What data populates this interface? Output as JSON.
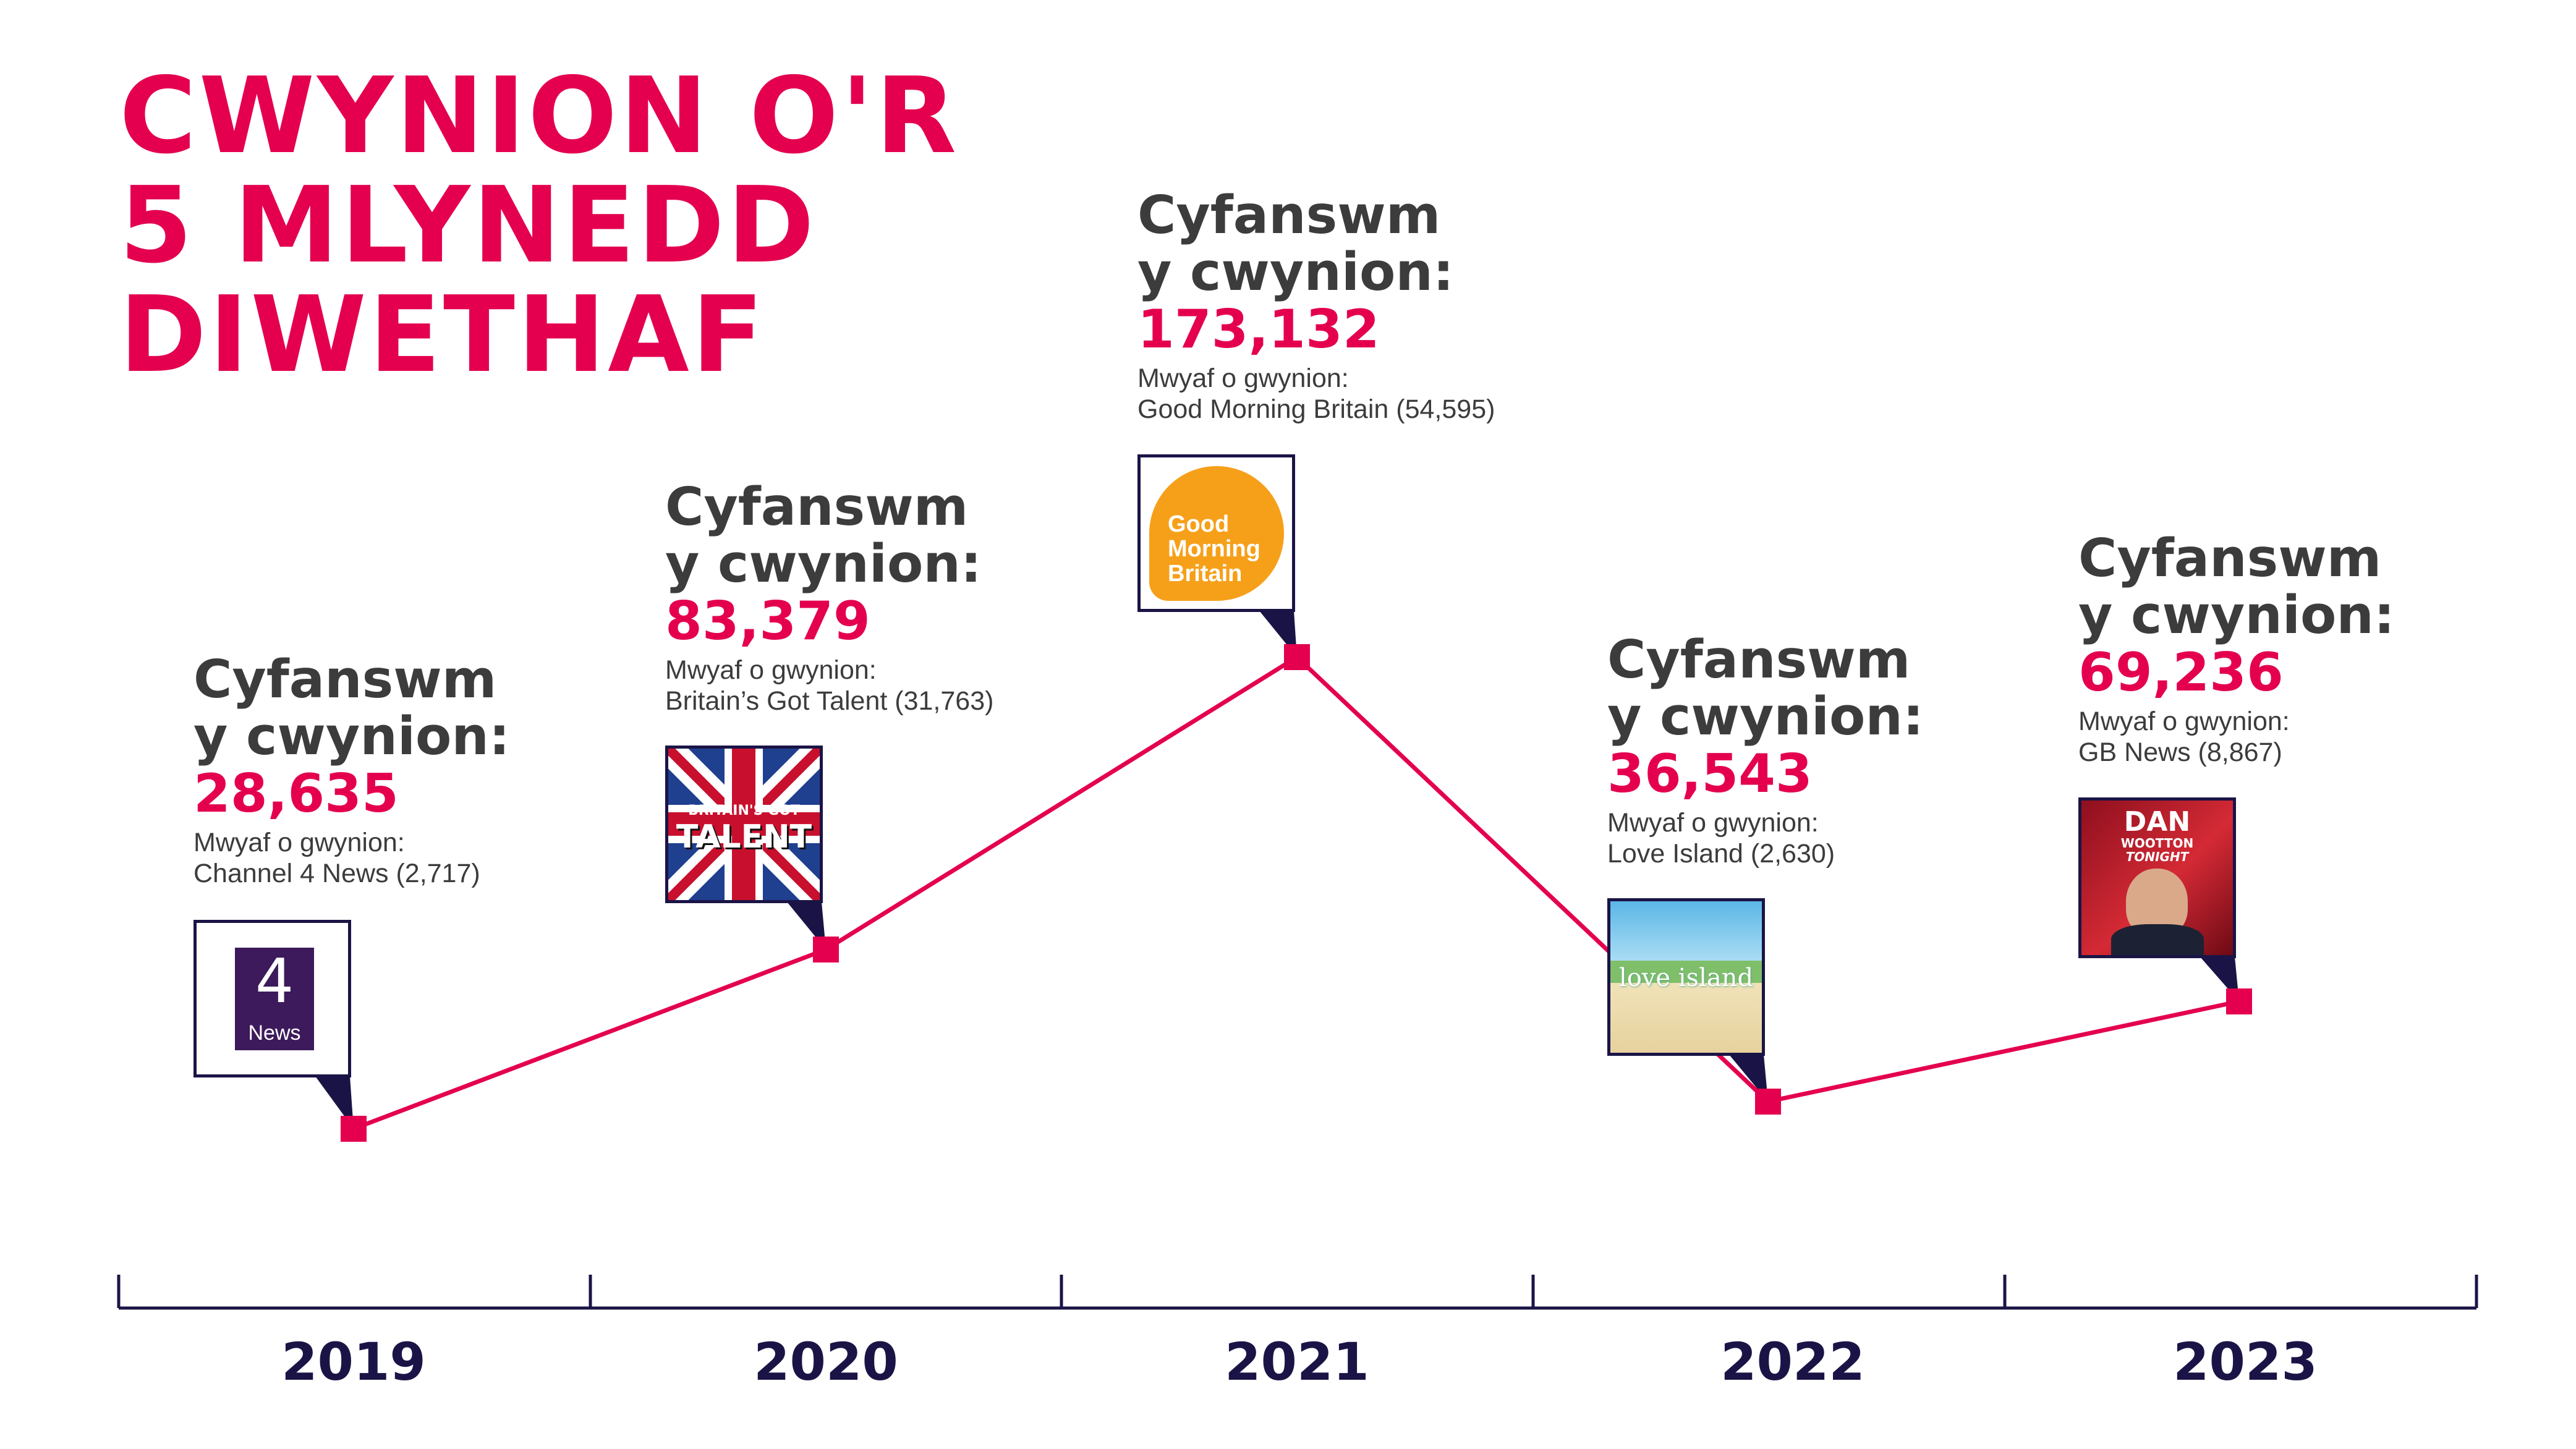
{
  "title": {
    "line1": "CWYNION O'R",
    "line2": "5 MLYNEDD",
    "line3": "DIWETHAF"
  },
  "heading": {
    "line1": "Cyfanswm",
    "line2": "y cwynion:"
  },
  "most_label": "Mwyaf o gwynion:",
  "colors": {
    "accent": "#e4004f",
    "dark": "#1a1446",
    "text": "#3c3c3c"
  },
  "years": [
    {
      "year": "2019",
      "total": "28,635",
      "top_show": "Channel 4 News (2,717)",
      "logo": "channel4-news-logo"
    },
    {
      "year": "2020",
      "total": "83,379",
      "top_show": "Britain’s Got Talent (31,763)",
      "logo": "britains-got-talent-logo"
    },
    {
      "year": "2021",
      "total": "173,132",
      "top_show": "Good Morning Britain (54,595)",
      "logo": "good-morning-britain-logo"
    },
    {
      "year": "2022",
      "total": "36,543",
      "top_show": "Love Island (2,630)",
      "logo": "love-island-logo"
    },
    {
      "year": "2023",
      "total": "69,236",
      "top_show": "GB News (8,867)",
      "logo": "dan-wootton-tonight-logo"
    }
  ],
  "logo_text": {
    "c4_digit": "4",
    "c4_word": "News",
    "bgt_line1": "BRITAIN'S GOT",
    "bgt_line2": "TALENT",
    "gmb_line1": "Good",
    "gmb_line2": "Morning",
    "gmb_line3": "Britain",
    "li_text": "love island",
    "dan_line1": "DAN",
    "dan_line2": "WOOTTON",
    "dan_line3": "TONIGHT"
  },
  "chart_data": {
    "type": "line",
    "title": "CWYNION O'R 5 MLYNEDD DIWETHAF",
    "xlabel": "",
    "ylabel": "",
    "categories": [
      "2019",
      "2020",
      "2021",
      "2022",
      "2023"
    ],
    "values": [
      28635,
      83379,
      173132,
      36543,
      69236
    ],
    "grid": false,
    "legend": "none"
  }
}
